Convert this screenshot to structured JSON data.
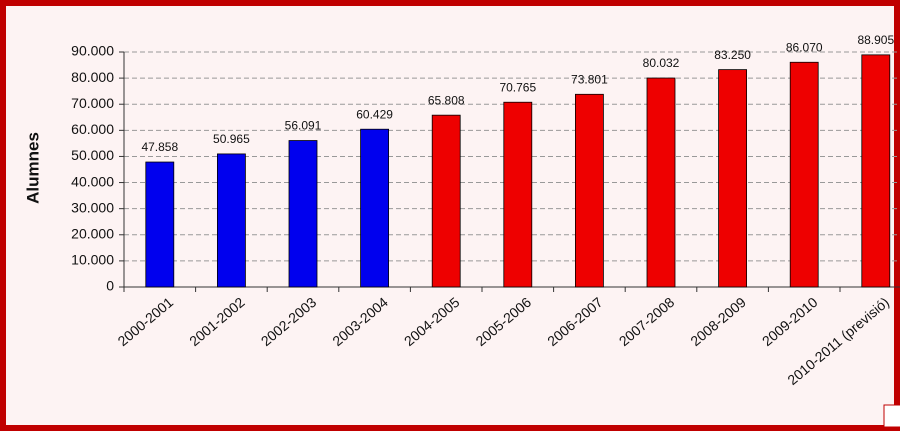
{
  "chart_data": {
    "type": "bar",
    "y_label": "Alumnes",
    "categories": [
      "2000-2001",
      "2001-2002",
      "2002-2003",
      "2003-2004",
      "2004-2005",
      "2005-2006",
      "2006-2007",
      "2007-2008",
      "2008-2009",
      "2009-2010",
      "2010-2011 (previsió)"
    ],
    "values": [
      47858,
      50965,
      56091,
      60429,
      65808,
      70765,
      73801,
      80032,
      83250,
      86070,
      88905
    ],
    "value_labels": [
      "47.858",
      "50.965",
      "56.091",
      "60.429",
      "65.808",
      "70.765",
      "73.801",
      "80.032",
      "83.250",
      "86.070",
      "88.905"
    ],
    "colors": [
      "#0000ee",
      "#0000ee",
      "#0000ee",
      "#0000ee",
      "#ee0000",
      "#ee0000",
      "#ee0000",
      "#ee0000",
      "#ee0000",
      "#ee0000",
      "#ee0000"
    ],
    "ylim": [
      0,
      90000
    ],
    "yticks": [
      {
        "value": 0,
        "label": "0"
      },
      {
        "value": 10000,
        "label": "10.000"
      },
      {
        "value": 20000,
        "label": "20.000"
      },
      {
        "value": 30000,
        "label": "30.000"
      },
      {
        "value": 40000,
        "label": "40.000"
      },
      {
        "value": 50000,
        "label": "50.000"
      },
      {
        "value": 60000,
        "label": "60.000"
      },
      {
        "value": 70000,
        "label": "70.000"
      },
      {
        "value": 80000,
        "label": "80.000"
      },
      {
        "value": 90000,
        "label": "90.000"
      }
    ],
    "grid": true
  }
}
